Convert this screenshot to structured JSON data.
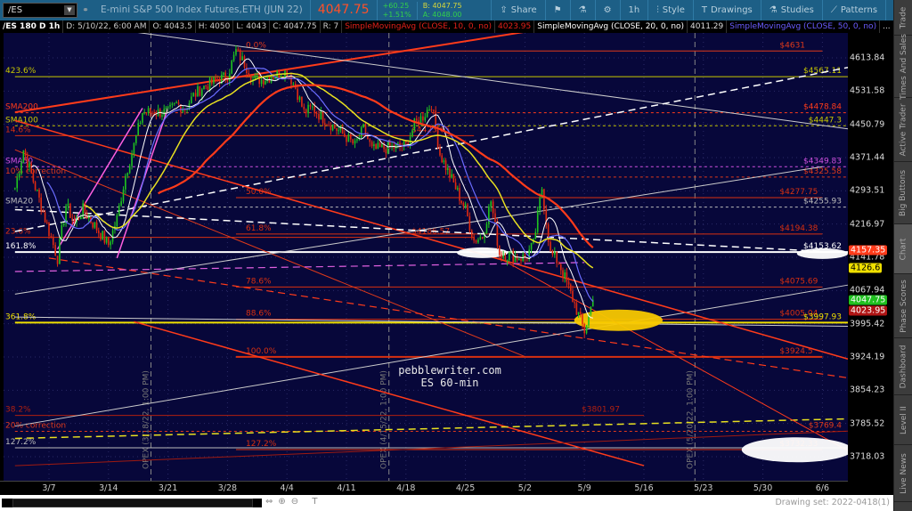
{
  "toolbar": {
    "symbol": "/ES",
    "description": "E-mini S&P 500 Index Futures,ETH (JUN 22)",
    "last": "4047.75",
    "net_change": "+60.25",
    "pct_change": "+1.51%",
    "bid": "B: 4047.75",
    "ask": "A: 4048.00",
    "buttons": [
      {
        "label": "Share",
        "icon": "share-icon"
      },
      {
        "label": "",
        "icon": "alert-icon"
      },
      {
        "label": "",
        "icon": "flask-icon"
      },
      {
        "label": "",
        "icon": "gear-icon"
      },
      {
        "label": "1h",
        "icon": ""
      },
      {
        "label": "Style",
        "icon": "candle-style-icon"
      },
      {
        "label": "Drawings",
        "icon": "text-T-icon"
      },
      {
        "label": "Studies",
        "icon": "flask-icon"
      },
      {
        "label": "Patterns",
        "icon": "patterns-icon"
      },
      {
        "label": "",
        "icon": "menu-list-icon"
      }
    ]
  },
  "infobar": {
    "items": [
      "/ES 180 D 1h",
      "D: 5/10/22, 6:00 AM",
      "O: 4043.5",
      "H: 4050",
      "L: 4043",
      "C: 4047.75",
      "R: 7"
    ],
    "studies": [
      {
        "label": "SimpleMovingAvg (CLOSE, 10, 0, no)",
        "value": "4023.95",
        "color": "#e0201a"
      },
      {
        "label": "SimpleMovingAvg (CLOSE, 20, 0, no)",
        "value": "4011.29",
        "color": "#ffffff"
      },
      {
        "label": "SimpleMovingAvg (CLOSE, 50, 0, no)",
        "value": "...",
        "color": "#6a5cff"
      }
    ]
  },
  "side_tabs": [
    "Trade",
    "Times And Sales",
    "Active Trader",
    "Big Buttons",
    "Chart",
    "Phase Scores",
    "Dashboard",
    "Level II",
    "Live News"
  ],
  "active_side_tab": "Chart",
  "bottom": {
    "drawing_set": "Drawing set: 2022-0418(1)"
  },
  "chart_data": {
    "type": "candlestick",
    "price_scale": "log",
    "ylim": [
      3680,
      4660
    ],
    "y_ticks": [
      "4613.84",
      "4531.58",
      "4450.79",
      "4371.44",
      "4293.51",
      "4216.97",
      "4141.78",
      "4067.94",
      "3995.42",
      "3924.19",
      "3854.23",
      "3785.52",
      "3718.03"
    ],
    "x_ticks": [
      "3/7",
      "3/14",
      "3/21",
      "3/28",
      "4/4",
      "4/11",
      "4/18",
      "4/25",
      "5/2",
      "5/9",
      "5/16",
      "5/23",
      "5/30",
      "6/6"
    ],
    "price_badges": [
      {
        "value": "4157.35",
        "bg": "#ff3b1a",
        "fg": "#fff"
      },
      {
        "value": "4126.6",
        "bg": "#f0e000",
        "fg": "#000"
      },
      {
        "value": "4047.75",
        "bg": "#20c020",
        "fg": "#fff"
      },
      {
        "value": "4023.95",
        "bg": "#b01515",
        "fg": "#fff"
      }
    ],
    "prices": [
      [
        "2022-03-03",
        4300
      ],
      [
        "2022-03-04",
        4390
      ],
      [
        "2022-03-07",
        4200
      ],
      [
        "2022-03-08",
        4140
      ],
      [
        "2022-03-09",
        4260
      ],
      [
        "2022-03-10",
        4220
      ],
      [
        "2022-03-11",
        4250
      ],
      [
        "2022-03-14",
        4170
      ],
      [
        "2022-03-15",
        4230
      ],
      [
        "2022-03-16",
        4330
      ],
      [
        "2022-03-17",
        4400
      ],
      [
        "2022-03-18",
        4480
      ],
      [
        "2022-03-21",
        4480
      ],
      [
        "2022-03-22",
        4500
      ],
      [
        "2022-03-23",
        4490
      ],
      [
        "2022-03-24",
        4520
      ],
      [
        "2022-03-25",
        4540
      ],
      [
        "2022-03-28",
        4570
      ],
      [
        "2022-03-29",
        4631
      ],
      [
        "2022-03-30",
        4600
      ],
      [
        "2022-03-31",
        4560
      ],
      [
        "2022-04-01",
        4560
      ],
      [
        "2022-04-04",
        4580
      ],
      [
        "2022-04-05",
        4540
      ],
      [
        "2022-04-06",
        4480
      ],
      [
        "2022-04-07",
        4490
      ],
      [
        "2022-04-08",
        4470
      ],
      [
        "2022-04-11",
        4420
      ],
      [
        "2022-04-12",
        4400
      ],
      [
        "2022-04-13",
        4440
      ],
      [
        "2022-04-14",
        4390
      ],
      [
        "2022-04-18",
        4400
      ],
      [
        "2022-04-19",
        4450
      ],
      [
        "2022-04-20",
        4470
      ],
      [
        "2022-04-21",
        4500
      ],
      [
        "2022-04-22",
        4380
      ],
      [
        "2022-04-25",
        4250
      ],
      [
        "2022-04-26",
        4180
      ],
      [
        "2022-04-27",
        4190
      ],
      [
        "2022-04-28",
        4270
      ],
      [
        "2022-04-29",
        4150
      ],
      [
        "2022-05-02",
        4140
      ],
      [
        "2022-05-03",
        4170
      ],
      [
        "2022-05-04",
        4300
      ],
      [
        "2022-05-05",
        4150
      ],
      [
        "2022-05-06",
        4130
      ],
      [
        "2022-05-09",
        3980
      ],
      [
        "2022-05-10",
        4047.75
      ]
    ],
    "sma_colors": {
      "sma10": "#ff3b1a",
      "sma20": "#e8e020",
      "sma50": "#6a6cff",
      "fast": "#ffffff"
    },
    "levels": [
      {
        "label": "0.0%",
        "price": 4631,
        "from": "2022-03-29",
        "to": "2022-06-06",
        "color": "#e03a1a",
        "tag": "$4631"
      },
      {
        "label": "423.6%",
        "price": 4567.11,
        "from": "2022-03-03",
        "to": "2022-06-10",
        "color": "#c8c800",
        "tag": "$4567.11",
        "side": "left"
      },
      {
        "label": "SMA200",
        "price": 4478.84,
        "from": "2022-03-03",
        "to": "2022-06-10",
        "color": "#ff3b1a",
        "tag": "$4478.84",
        "style": "dot",
        "side": "left"
      },
      {
        "label": "SMA100",
        "price": 4447.3,
        "from": "2022-03-03",
        "to": "2022-06-10",
        "color": "#c8c800",
        "tag": "$4447.3",
        "style": "dot",
        "side": "left"
      },
      {
        "label": "14.6%",
        "price": 4423.65,
        "from": "2022-03-03",
        "to": "2022-04-26",
        "color": "#d83010",
        "tag": "$4423.65",
        "side": "left"
      },
      {
        "label": "SMA50",
        "price": 4349.83,
        "from": "2022-03-03",
        "to": "2022-06-10",
        "color": "#d050e0",
        "tag": "$4349.83",
        "style": "dot",
        "side": "left"
      },
      {
        "label": "10% correction",
        "price": 4325.58,
        "from": "2022-03-03",
        "to": "2022-06-10",
        "color": "#e03a1a",
        "tag": "$4325.58",
        "style": "dot",
        "side": "left"
      },
      {
        "label": "50.0%",
        "price": 4277.75,
        "from": "2022-03-29",
        "to": "2022-06-06",
        "color": "#d83010",
        "tag": "$4277.75"
      },
      {
        "label": "SMA20",
        "price": 4255.93,
        "from": "2022-03-03",
        "to": "2022-06-10",
        "color": "#bbbbbb",
        "tag": "$4255.93",
        "style": "dot",
        "side": "left"
      },
      {
        "label": "23.6%",
        "price": 4186.57,
        "from": "2022-03-03",
        "to": "2022-04-26",
        "color": "#d83010",
        "tag": "$4186.57",
        "side": "left"
      },
      {
        "label": "61.8%",
        "price": 4194.38,
        "from": "2022-03-29",
        "to": "2022-06-06",
        "color": "#d83010",
        "tag": "$4194.38"
      },
      {
        "label": "161.8%",
        "price": 4153.62,
        "from": "2022-03-03",
        "to": "2022-06-10",
        "color": "#ffffff",
        "tag": "$4153.62",
        "side": "left",
        "width": 2
      },
      {
        "label": "78.6%",
        "price": 4075.69,
        "from": "2022-03-29",
        "to": "2022-06-06",
        "color": "#d83010",
        "tag": "$4075.69"
      },
      {
        "label": "88.6%",
        "price": 4005.04,
        "from": "2022-03-29",
        "to": "2022-06-06",
        "color": "#d83010",
        "tag": "$4005.04"
      },
      {
        "label": "361.8%",
        "price": 3997.93,
        "from": "2022-03-03",
        "to": "2022-06-10",
        "color": "#f0e000",
        "tag": "$3997.93",
        "side": "left",
        "width": 2
      },
      {
        "label": "100.0%",
        "price": 3924.5,
        "from": "2022-03-29",
        "to": "2022-06-06",
        "color": "#d83010",
        "tag": "$3924.5",
        "width": 2
      },
      {
        "label": "38.2%",
        "price": 3801.97,
        "from": "2022-03-03",
        "to": "2022-05-16",
        "color": "#b02010",
        "tag": "$3801.97",
        "side": "left"
      },
      {
        "label": "20% correction",
        "price": 3769.4,
        "from": "2022-03-03",
        "to": "2022-06-10",
        "color": "#e03a1a",
        "tag": "$3769.4",
        "style": "dot",
        "side": "left"
      },
      {
        "label": "127.2%",
        "price": 3736,
        "from": "2022-03-03",
        "to": "2022-06-10",
        "color": "#bbbbbb",
        "tag": "",
        "side": "left"
      },
      {
        "label": "127.2%",
        "price": 3732.33,
        "from": "2022-03-29",
        "to": "2022-06-06",
        "color": "#d83010",
        "tag": "$3732.33"
      }
    ],
    "trendlines": [
      [
        "2022-03-03",
        4480,
        "2022-06-10",
        4810,
        "#ff3b1a",
        "solid",
        2
      ],
      [
        "2022-03-03",
        4720,
        "2022-06-10",
        4440,
        "#cccccc",
        "solid",
        1
      ],
      [
        "2022-03-03",
        4200,
        "2022-06-10",
        4590,
        "#ffffff",
        "dash",
        1.5
      ],
      [
        "2022-03-03",
        4390,
        "2022-05-02",
        3925,
        "#e03a1a",
        "solid",
        1
      ],
      [
        "2022-03-07",
        4140,
        "2022-06-10",
        3880,
        "#ff3b1a",
        "dash",
        1.2
      ],
      [
        "2022-03-03",
        4010,
        "2022-06-10",
        3990,
        "#cccccc",
        "solid",
        1
      ],
      [
        "2022-03-03",
        4060,
        "2022-06-06",
        4350,
        "#cccccc",
        "solid",
        1
      ],
      [
        "2022-03-03",
        3780,
        "2022-06-10",
        4080,
        "#cccccc",
        "solid",
        1
      ],
      [
        "2022-03-03",
        4460,
        "2022-06-10",
        3920,
        "#ff3b1a",
        "solid",
        1.5
      ],
      [
        "2022-03-17",
        4000,
        "2022-05-16",
        3700,
        "#ff3b1a",
        "solid",
        1.5
      ],
      [
        "2022-03-03",
        3755,
        "2022-06-10",
        3795,
        "#e8e020",
        "dash",
        1.5
      ],
      [
        "2022-03-03",
        4250,
        "2022-06-06",
        4155,
        "#ffffff",
        "dash",
        1.5
      ],
      [
        "2022-03-08",
        4160,
        "2022-03-18",
        4490,
        "#ff60e0",
        "solid",
        1.5
      ],
      [
        "2022-03-15",
        4140,
        "2022-03-21",
        4490,
        "#ff60e0",
        "solid",
        1.5
      ],
      [
        "2022-03-03",
        4110,
        "2022-05-09",
        4130,
        "#e060e0",
        "dash",
        1.2
      ],
      [
        "2022-04-29",
        4140,
        "2022-06-10",
        3730,
        "#ff3b1a",
        "solid",
        1
      ],
      [
        "2022-03-03",
        3700,
        "2022-06-10",
        3770,
        "#a01a10",
        "solid",
        1
      ]
    ],
    "ellipses": [
      {
        "date": "2022-05-13",
        "price": 4003,
        "rdays": 5.2,
        "rpx": 12,
        "color": "#f8c800"
      },
      {
        "date": "2022-04-27",
        "price": 4152,
        "rdays": 3,
        "rpx": 6,
        "color": "#ffffff"
      },
      {
        "date": "2022-06-06",
        "price": 4150,
        "rdays": 3,
        "rpx": 6,
        "color": "#ffffff"
      },
      {
        "date": "2022-06-03",
        "price": 3732,
        "rdays": 6.5,
        "rpx": 14,
        "color": "#ffffff"
      }
    ],
    "event_lines": [
      {
        "date": "2022-03-19",
        "label": "OPEX (3/18/22, 1:00 PM)"
      },
      {
        "date": "2022-04-16",
        "label": "OPEX (4/15/22, 1:00 PM)"
      },
      {
        "date": "2022-05-22",
        "label": "OPEX (5/20/22, 1:00 PM)"
      }
    ],
    "watermark": [
      "pebblewriter.com",
      "ES 60-min"
    ]
  }
}
